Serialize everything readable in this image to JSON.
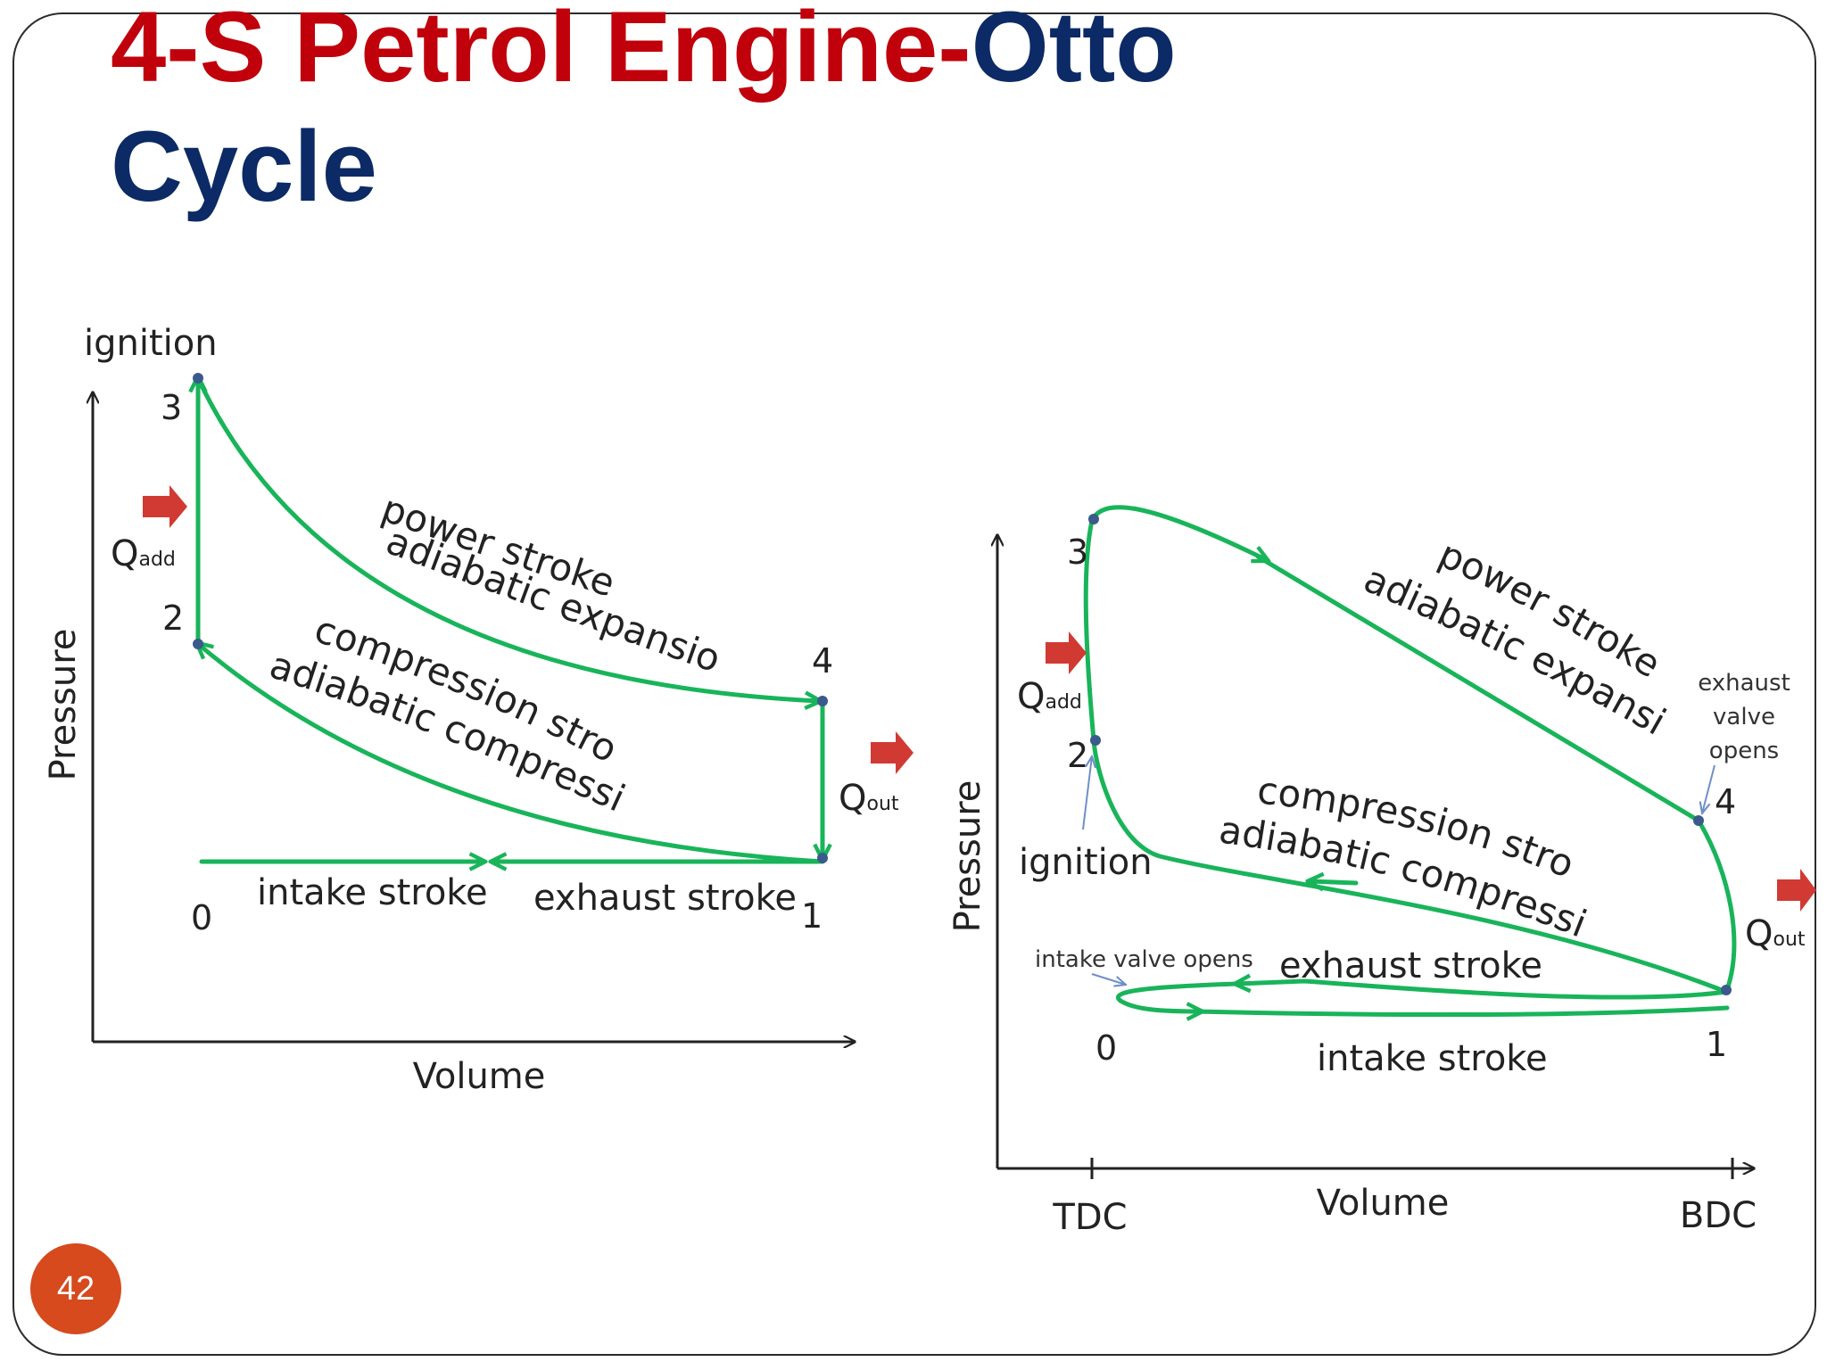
{
  "slide": {
    "title_part1": "4-S Petrol Engine-",
    "title_part2": "Otto",
    "title_line2": "Cycle",
    "page_number": "42",
    "colors": {
      "title_red": "#c0000b",
      "title_blue": "#0b2a66",
      "curve": "#19b45a",
      "arrow": "#d03a32",
      "badge": "#d64a1e"
    }
  },
  "left_diagram": {
    "y_axis_label": "Pressure",
    "x_axis_label": "Volume",
    "ignition_label": "ignition",
    "q_add": {
      "main": "Q",
      "sub": "add"
    },
    "q_out": {
      "main": "Q",
      "sub": "out"
    },
    "point_labels": [
      "0",
      "1",
      "2",
      "3",
      "4"
    ],
    "power_stroke": "power stroke",
    "adiabatic_expansion": "adiabatic expansion",
    "compression_stroke": "compression stroke",
    "adiabatic_compression": "adiabatic compression",
    "intake_stroke": "intake stroke",
    "exhaust_stroke": "exhaust stroke"
  },
  "right_diagram": {
    "y_axis_label": "Pressure",
    "x_axis_label": "Volume",
    "tdc_label": "TDC",
    "bdc_label": "BDC",
    "ignition_label": "ignition",
    "q_add": {
      "main": "Q",
      "sub": "add"
    },
    "q_out": {
      "main": "Q",
      "sub": "out"
    },
    "point_labels": [
      "0",
      "1",
      "2",
      "3",
      "4"
    ],
    "power_stroke": "power stroke",
    "adiabatic_expansion": "adiabatic expansion",
    "compression_stroke": "compression stroke",
    "adiabatic_compression": "adiabatic compression",
    "exhaust_stroke": "exhaust stroke",
    "intake_stroke": "intake stroke",
    "intake_valve_opens": "intake valve opens",
    "exhaust_valve_opens": [
      "exhaust",
      "valve",
      "opens"
    ]
  }
}
